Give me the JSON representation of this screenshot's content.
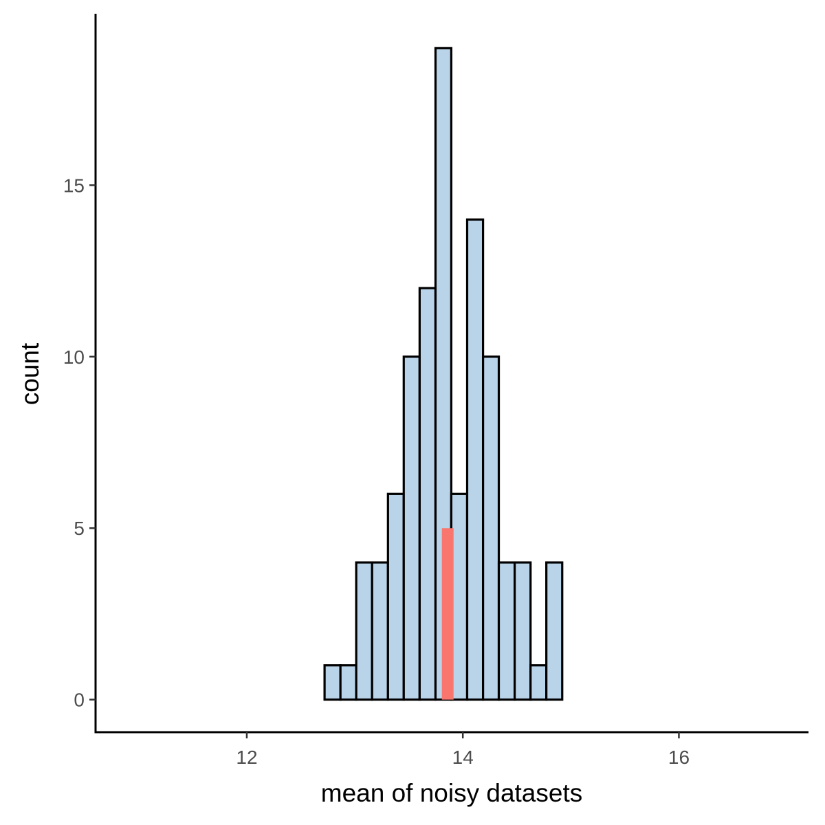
{
  "chart_data": {
    "type": "bar",
    "subtype": "histogram",
    "title": "",
    "xlabel": "mean of noisy datasets",
    "ylabel": "count",
    "xlim": [
      10.6,
      17.2
    ],
    "ylim": [
      -0.95,
      20
    ],
    "xticks": [
      12,
      14,
      16
    ],
    "yticks": [
      0,
      5,
      10,
      15
    ],
    "grid": false,
    "legend": "none",
    "bins": [
      {
        "x0": 12.72,
        "x1": 12.867,
        "count": 1
      },
      {
        "x0": 12.867,
        "x1": 13.013,
        "count": 1
      },
      {
        "x0": 13.013,
        "x1": 13.16,
        "count": 4
      },
      {
        "x0": 13.16,
        "x1": 13.307,
        "count": 4
      },
      {
        "x0": 13.307,
        "x1": 13.453,
        "count": 6
      },
      {
        "x0": 13.453,
        "x1": 13.6,
        "count": 10
      },
      {
        "x0": 13.6,
        "x1": 13.747,
        "count": 12
      },
      {
        "x0": 13.747,
        "x1": 13.893,
        "count": 19
      },
      {
        "x0": 13.893,
        "x1": 14.04,
        "count": 6
      },
      {
        "x0": 14.04,
        "x1": 14.187,
        "count": 14
      },
      {
        "x0": 14.187,
        "x1": 14.333,
        "count": 10
      },
      {
        "x0": 14.333,
        "x1": 14.48,
        "count": 4
      },
      {
        "x0": 14.48,
        "x1": 14.627,
        "count": 4
      },
      {
        "x0": 14.627,
        "x1": 14.773,
        "count": 1
      },
      {
        "x0": 14.773,
        "x1": 14.92,
        "count": 4
      }
    ],
    "highlight_segment": {
      "x": 13.86,
      "y0": 0,
      "y1": 5
    },
    "colors": {
      "bar_fill": "#b9d3e8",
      "bar_stroke": "#000000",
      "highlight": "#f8766d",
      "tick_label": "#4d4d4d",
      "axis": "#000000"
    }
  }
}
